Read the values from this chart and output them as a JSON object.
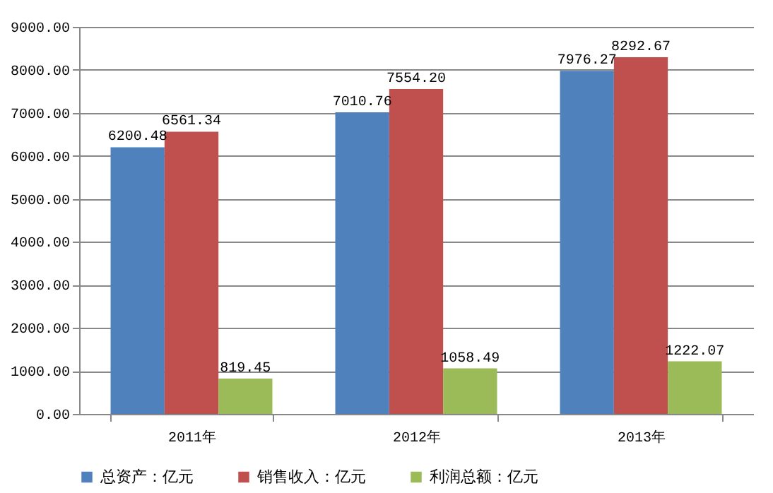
{
  "chart_data": {
    "type": "bar",
    "categories": [
      "2011年",
      "2012年",
      "2013年"
    ],
    "series": [
      {
        "name": "总资产：亿元",
        "color": "#4f81bd",
        "values": [
          6200.48,
          7010.76,
          7976.27
        ],
        "value_labels": [
          "6200.48",
          "7010.76",
          "7976.27"
        ]
      },
      {
        "name": "销售收入：亿元",
        "color": "#c0504d",
        "values": [
          6561.34,
          7554.2,
          8292.67
        ],
        "value_labels": [
          "6561.34",
          "7554.20",
          "8292.67"
        ]
      },
      {
        "name": "利润总额：亿元",
        "color": "#9bbb59",
        "values": [
          819.45,
          1058.49,
          1222.07
        ],
        "value_labels": [
          "819.45",
          "1058.49",
          "1222.07"
        ]
      }
    ],
    "ylim": [
      0,
      9000
    ],
    "yticks": [
      {
        "value": 0,
        "label": "0.00"
      },
      {
        "value": 1000,
        "label": "1000.00"
      },
      {
        "value": 2000,
        "label": "2000.00"
      },
      {
        "value": 3000,
        "label": "3000.00"
      },
      {
        "value": 4000,
        "label": "4000.00"
      },
      {
        "value": 5000,
        "label": "5000.00"
      },
      {
        "value": 6000,
        "label": "6000.00"
      },
      {
        "value": 7000,
        "label": "7000.00"
      },
      {
        "value": 8000,
        "label": "8000.00"
      },
      {
        "value": 9000,
        "label": "9000.00"
      }
    ],
    "grid": "y",
    "legend": "bottom"
  }
}
